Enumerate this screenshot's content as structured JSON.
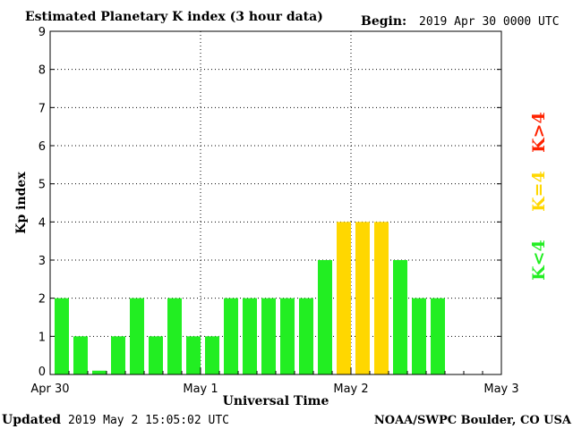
{
  "header": {
    "title": "Estimated Planetary K index (3 hour data)",
    "begin_label": "Begin:",
    "begin_value": "2019 Apr 30 0000 UTC"
  },
  "footer": {
    "updated_label": "Updated",
    "updated_value": "2019 May  2 15:05:02 UTC",
    "credit": "NOAA/SWPC Boulder, CO USA"
  },
  "legend": {
    "below": "K<4",
    "equal": "K=4",
    "above": "K>4"
  },
  "colors": {
    "below": "#22ee22",
    "equal": "#ffd700",
    "above": "#ff2200",
    "background": "#ffffff"
  },
  "chart_data": {
    "type": "bar",
    "title": "Estimated Planetary K index (3 hour data)",
    "xlabel": "Universal Time",
    "ylabel": "Kp index",
    "ylim": [
      0,
      9
    ],
    "yticks": [
      "0",
      "1",
      "2",
      "3",
      "4",
      "5",
      "6",
      "7",
      "8",
      "9"
    ],
    "xtick_labels": [
      "Apr 30",
      "May 1",
      "May 2",
      "May 3"
    ],
    "grid": true,
    "categories": [
      "Apr 30 00",
      "Apr 30 03",
      "Apr 30 06",
      "Apr 30 09",
      "Apr 30 12",
      "Apr 30 15",
      "Apr 30 18",
      "Apr 30 21",
      "May 1 00",
      "May 1 03",
      "May 1 06",
      "May 1 09",
      "May 1 12",
      "May 1 15",
      "May 1 18",
      "May 1 21",
      "May 2 00",
      "May 2 03",
      "May 2 06",
      "May 2 09",
      "May 2 12"
    ],
    "values": [
      2,
      1,
      0.1,
      1,
      2,
      1,
      2,
      1,
      1,
      2,
      2,
      2,
      2,
      2,
      3,
      4,
      4,
      4,
      3,
      2,
      2
    ]
  }
}
